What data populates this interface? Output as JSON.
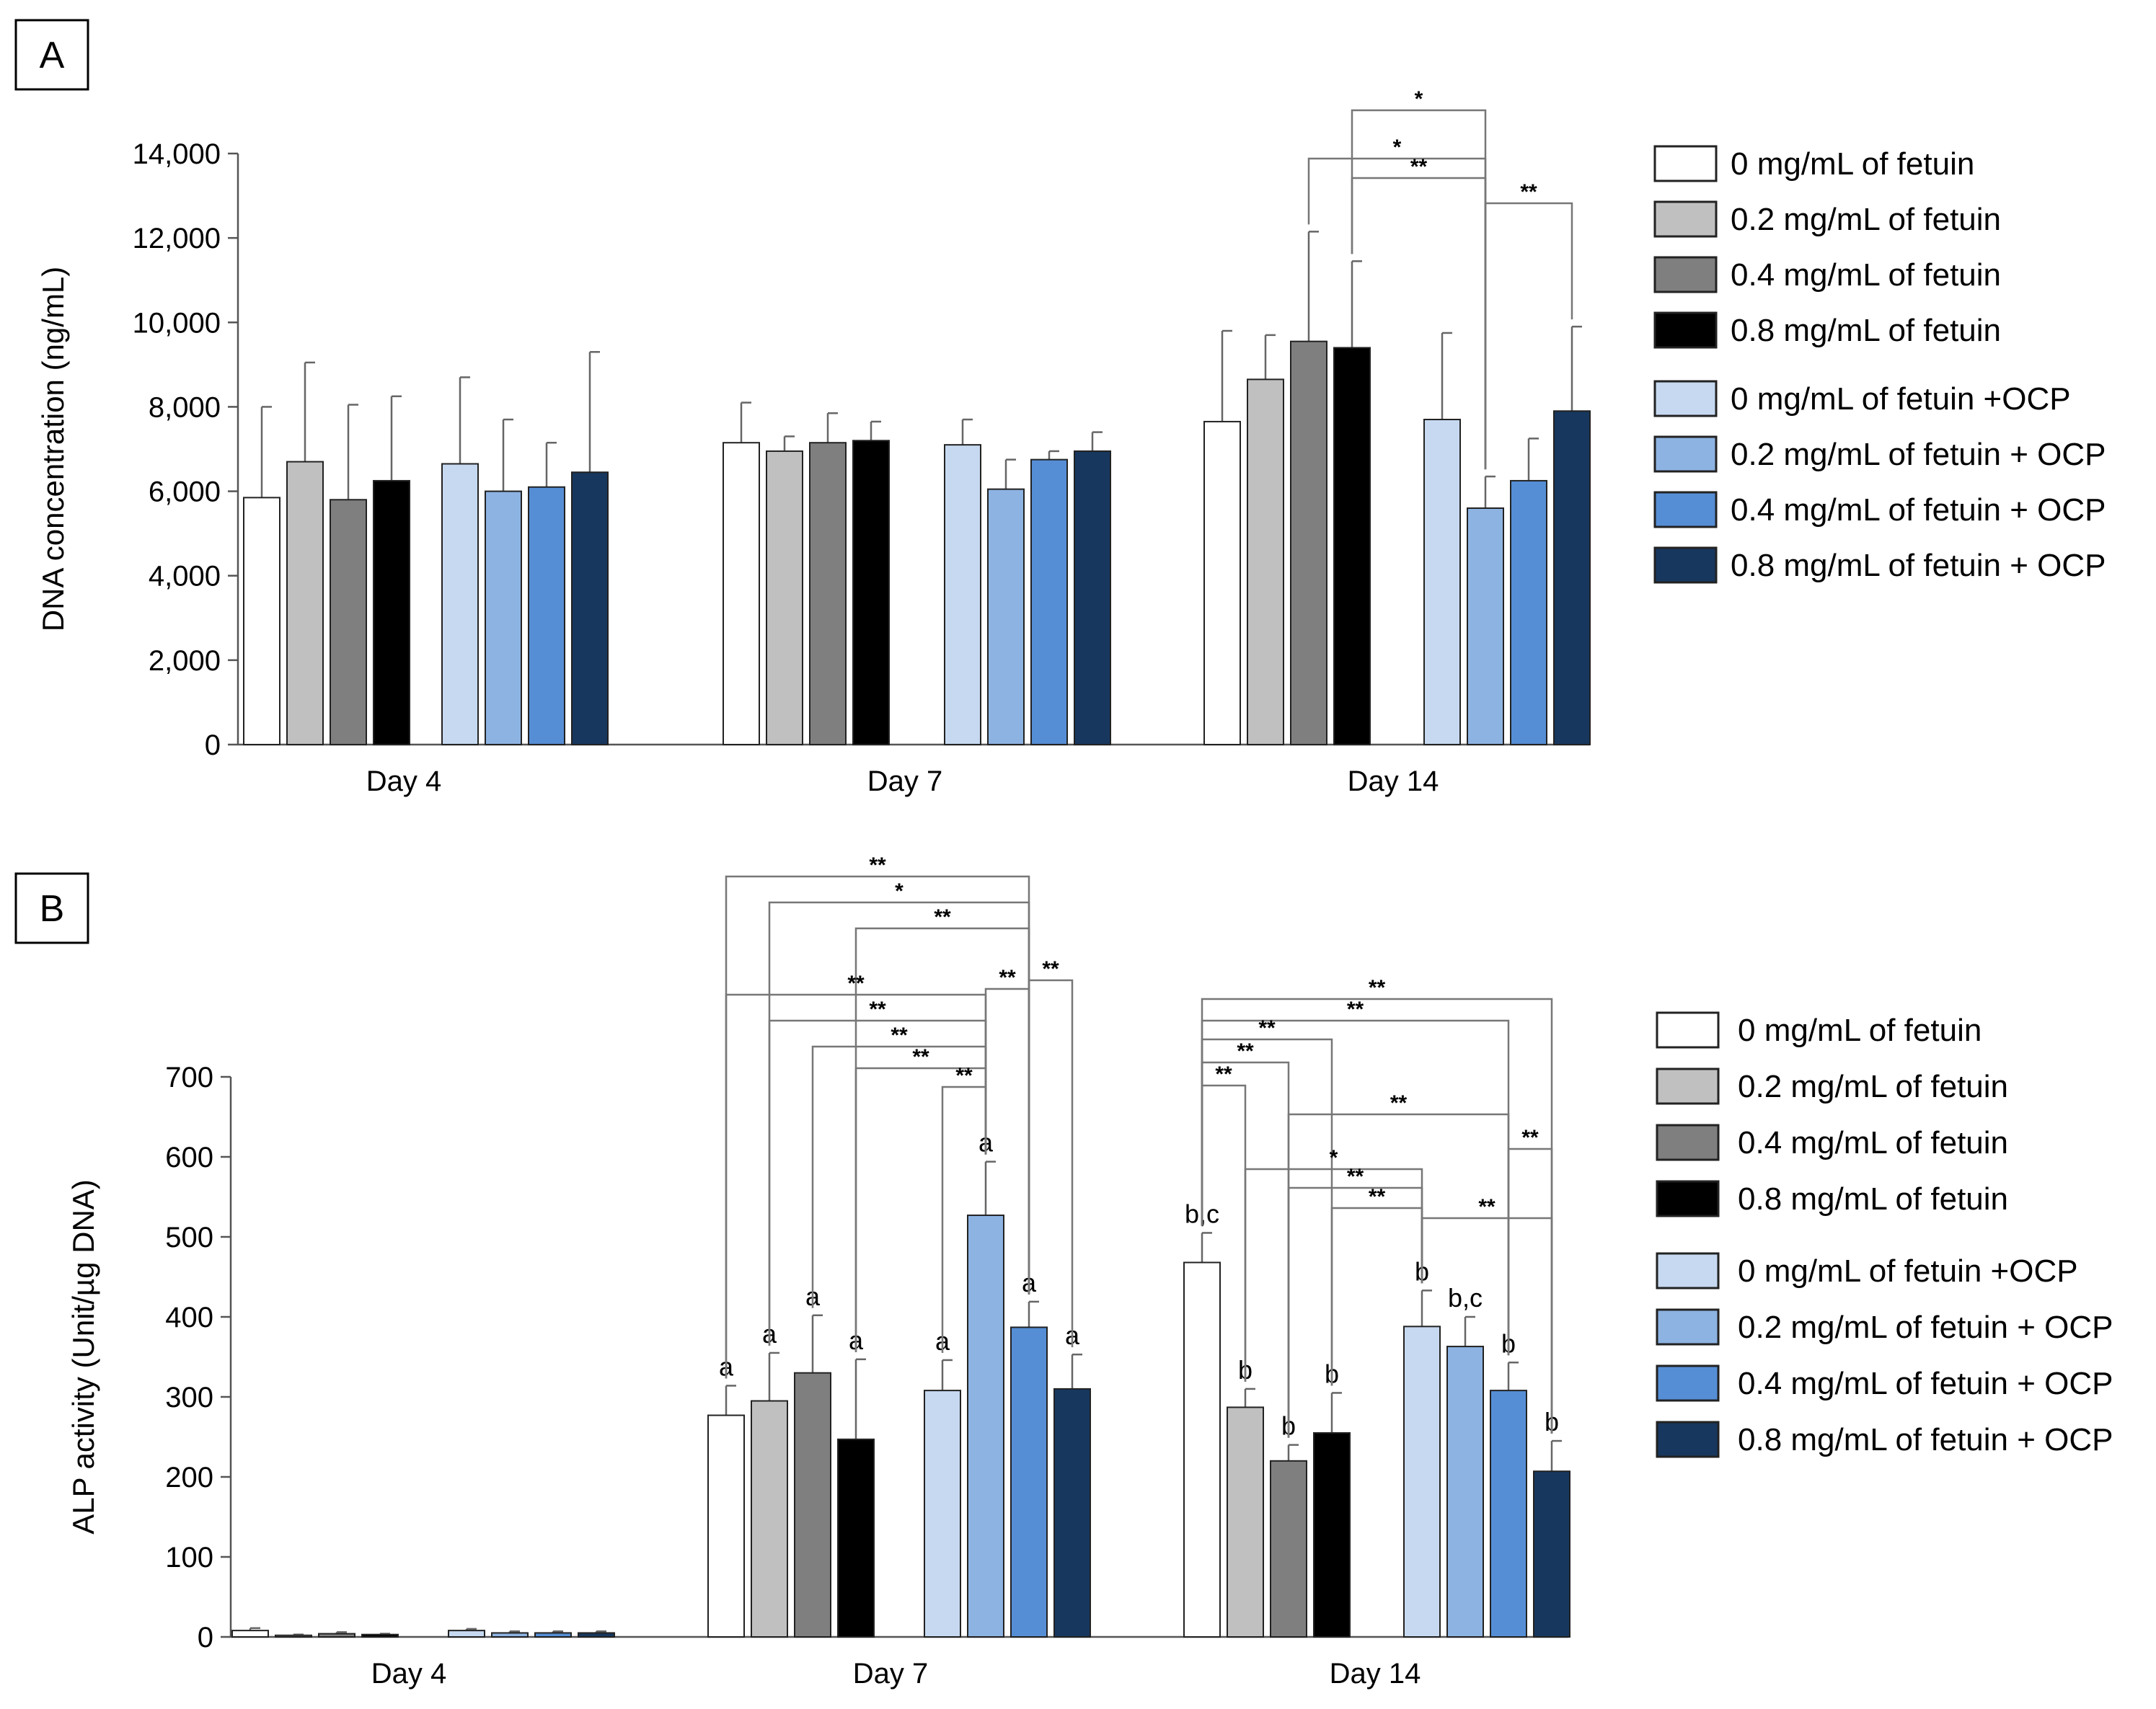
{
  "chart_data": [
    {
      "type": "bar",
      "panel": "A",
      "ylabel": "DNA concentration (ng/mL)",
      "xlabel": "",
      "ylim": [
        0,
        14000
      ],
      "yticks": [
        "0",
        "2,000",
        "4,000",
        "6,000",
        "8,000",
        "10,000",
        "12,000",
        "14,000"
      ],
      "categories": [
        "Day 4",
        "Day 7",
        "Day 14"
      ],
      "series": [
        {
          "name": "0 mg/mL of fetuin",
          "values": [
            5850,
            7150,
            7650
          ],
          "errors": [
            2150,
            950,
            2150
          ]
        },
        {
          "name": "0.2 mg/mL of fetuin",
          "values": [
            6700,
            6950,
            8650
          ],
          "errors": [
            2350,
            350,
            1050
          ]
        },
        {
          "name": "0.4 mg/mL of fetuin",
          "values": [
            5800,
            7150,
            9550
          ],
          "errors": [
            2250,
            700,
            2600
          ]
        },
        {
          "name": "0.8 mg/mL of fetuin",
          "values": [
            6250,
            7200,
            9400
          ],
          "errors": [
            2000,
            450,
            2050
          ]
        },
        {
          "name": "0 mg/mL of fetuin +OCP",
          "values": [
            6650,
            7100,
            7700
          ],
          "errors": [
            2050,
            600,
            2050
          ]
        },
        {
          "name": "0.2 mg/mL of fetuin + OCP",
          "values": [
            6000,
            6050,
            5600
          ],
          "errors": [
            1700,
            700,
            750
          ]
        },
        {
          "name": "0.4 mg/mL of fetuin + OCP",
          "values": [
            6100,
            6750,
            6250
          ],
          "errors": [
            1050,
            200,
            1000
          ]
        },
        {
          "name": "0.8 mg/mL of fetuin + OCP",
          "values": [
            6450,
            6950,
            7900
          ],
          "errors": [
            2850,
            450,
            2000
          ]
        }
      ],
      "significance": [
        "*",
        "*",
        "**",
        "**"
      ]
    },
    {
      "type": "bar",
      "panel": "B",
      "ylabel": "ALP activity (Unit/µg DNA)",
      "xlabel": "",
      "ylim": [
        0,
        700
      ],
      "yticks": [
        "0",
        "100",
        "200",
        "300",
        "400",
        "500",
        "600",
        "700"
      ],
      "categories": [
        "Day 4",
        "Day 7",
        "Day 14"
      ],
      "series": [
        {
          "name": "0 mg/mL of fetuin",
          "values": [
            8,
            277,
            468
          ],
          "errors": [
            3,
            37,
            37
          ],
          "letters": [
            "",
            "a",
            "b,c"
          ]
        },
        {
          "name": "0.2 mg/mL of fetuin",
          "values": [
            2,
            295,
            287
          ],
          "errors": [
            1,
            60,
            23
          ],
          "letters": [
            "",
            "a",
            "b"
          ]
        },
        {
          "name": "0.4 mg/mL of fetuin",
          "values": [
            4,
            330,
            220
          ],
          "errors": [
            2,
            72,
            20
          ],
          "letters": [
            "",
            "a",
            "b"
          ]
        },
        {
          "name": "0.8 mg/mL of fetuin",
          "values": [
            3,
            247,
            255
          ],
          "errors": [
            1,
            100,
            50
          ],
          "letters": [
            "",
            "a",
            "b"
          ]
        },
        {
          "name": "0 mg/mL of fetuin +OCP",
          "values": [
            8,
            308,
            388
          ],
          "errors": [
            2,
            38,
            45
          ],
          "letters": [
            "",
            "a",
            "b"
          ]
        },
        {
          "name": "0.2 mg/mL of fetuin + OCP",
          "values": [
            5,
            527,
            363
          ],
          "errors": [
            2,
            67,
            37
          ],
          "letters": [
            "",
            "a",
            "b,c"
          ]
        },
        {
          "name": "0.4 mg/mL of fetuin + OCP",
          "values": [
            5,
            387,
            308
          ],
          "errors": [
            2,
            32,
            35
          ],
          "letters": [
            "",
            "a",
            "b"
          ]
        },
        {
          "name": "0.8 mg/mL of fetuin + OCP",
          "values": [
            5,
            310,
            207
          ],
          "errors": [
            2,
            43,
            38
          ],
          "letters": [
            "",
            "a",
            "b"
          ]
        }
      ],
      "significance_day7": [
        "**",
        "*",
        "**",
        "**",
        "**",
        "**",
        "**",
        "**",
        "**",
        "**"
      ],
      "significance_day14": [
        "**",
        "**",
        "**",
        "**",
        "**",
        "**",
        "**",
        "*",
        "**",
        "**",
        "**"
      ]
    }
  ],
  "colors": {
    "0 mg/mL of fetuin": "#ffffff",
    "0.2 mg/mL of fetuin": "#c0c0c0",
    "0.4 mg/mL of fetuin": "#7f7f7f",
    "0.8 mg/mL of fetuin": "#000000",
    "0 mg/mL of fetuin +OCP": "#c6d9f0",
    "0.2 mg/mL of fetuin + OCP": "#8db3e2",
    "0.4 mg/mL of fetuin + OCP": "#558ed5",
    "0.8 mg/mL of fetuin + OCP": "#17375e"
  }
}
